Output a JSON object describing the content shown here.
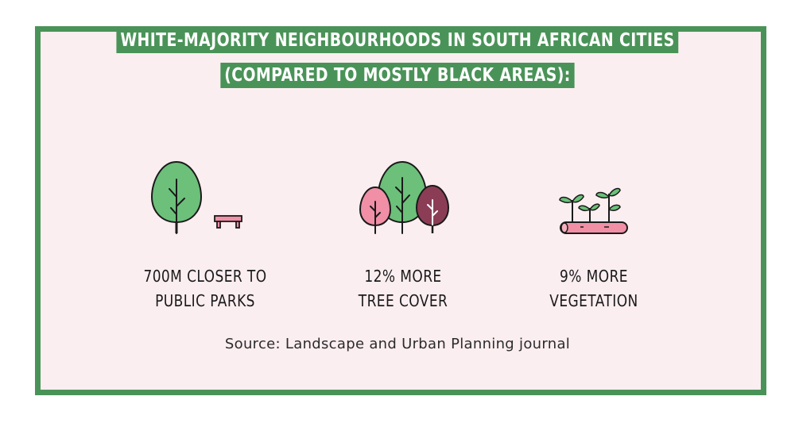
{
  "title": {
    "line1": "WHITE-MAJORITY NEIGHBOURHOODS IN SOUTH AFRICAN CITIES",
    "line2": "(COMPARED TO MOSTLY BLACK AREAS):"
  },
  "stats": [
    {
      "line1": "700M CLOSER TO",
      "line2": "PUBLIC PARKS",
      "icon": "tree-and-bench-icon"
    },
    {
      "line1": "12% MORE",
      "line2": "TREE COVER",
      "icon": "three-trees-icon"
    },
    {
      "line1": "9% MORE",
      "line2": "VEGETATION",
      "icon": "sprouts-on-log-icon"
    }
  ],
  "source": "Source: Landscape and Urban Planning journal",
  "colors": {
    "frame": "#4a9358",
    "background": "#fbeef0",
    "tree_green": "#6cc07a",
    "tree_pink": "#f08fa6",
    "tree_maroon": "#8c3d56",
    "bench": "#f08fa6"
  }
}
